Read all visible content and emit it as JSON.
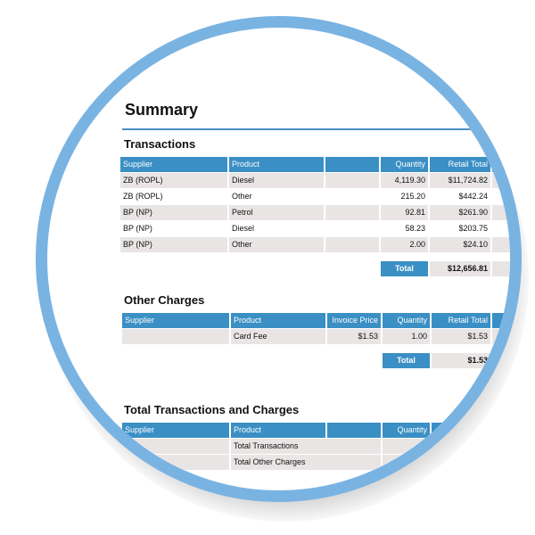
{
  "title": "Summary",
  "transactions": {
    "title": "Transactions",
    "headers": [
      "Supplier",
      "Product",
      "Quantity",
      "Retail Total"
    ],
    "rows": [
      [
        "ZB (ROPL)",
        "Diesel",
        "4,119.30",
        "$11,724.82"
      ],
      [
        "ZB (ROPL)",
        "Other",
        "215.20",
        "$442.24"
      ],
      [
        "BP (NP)",
        "Petrol",
        "92.81",
        "$261.90"
      ],
      [
        "BP (NP)",
        "Diesel",
        "58.23",
        "$203.75"
      ],
      [
        "BP (NP)",
        "Other",
        "2.00",
        "$24.10"
      ]
    ],
    "total_label": "Total",
    "total_value": "$12,656.81"
  },
  "other_charges": {
    "title": "Other Charges",
    "headers": [
      "Supplier",
      "Product",
      "Invoice Price",
      "Quantity",
      "Retail Total"
    ],
    "rows": [
      [
        "Card Fee",
        "$1.53",
        "1.00",
        "$1.53"
      ]
    ],
    "total_label": "Total",
    "total_value": "$1.53"
  },
  "totals": {
    "title": "Total Transactions and Charges",
    "headers": [
      "Supplier",
      "Product",
      "Quantity"
    ],
    "rows": [
      "Total Transactions",
      "Total Other Charges"
    ]
  }
}
